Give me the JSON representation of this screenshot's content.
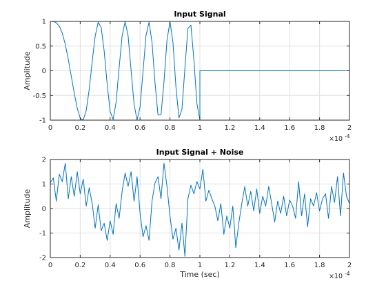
{
  "chart_data": [
    {
      "type": "line",
      "title": "Input Signal",
      "xlabel": "",
      "ylabel": "Amplitude",
      "xlim": [
        0,
        0.0002
      ],
      "ylim": [
        -1,
        1
      ],
      "xticks": [
        "0",
        "0.2",
        "0.4",
        "0.6",
        "0.8",
        "1",
        "1.2",
        "1.4",
        "1.6",
        "1.8",
        "2"
      ],
      "yticks": [
        "1",
        "0.5",
        "0",
        "-0.5",
        "-1"
      ],
      "x_exponent": "×10^-4",
      "x_exponent_base": "×10",
      "x_exponent_power": "-4",
      "grid": true,
      "series": [
        {
          "color": "#0072bd",
          "x": [
            0.0,
            2e-06,
            4e-06,
            6e-06,
            8e-06,
            1e-05,
            1.2e-05,
            1.4e-05,
            1.6e-05,
            1.8e-05,
            2e-05,
            2.2e-05,
            2.4e-05,
            2.6e-05,
            2.8e-05,
            3e-05,
            3.2e-05,
            3.4e-05,
            3.6e-05,
            3.8e-05,
            4e-05,
            4.2e-05,
            4.4e-05,
            4.6e-05,
            4.8e-05,
            5e-05,
            5.2e-05,
            5.4e-05,
            5.6e-05,
            5.8e-05,
            6e-05,
            6.2e-05,
            6.4e-05,
            6.6e-05,
            6.8e-05,
            7e-05,
            7.2e-05,
            7.4e-05,
            7.6e-05,
            7.8e-05,
            8e-05,
            8.2e-05,
            8.4e-05,
            8.6e-05,
            8.8e-05,
            9e-05,
            9.2e-05,
            9.4e-05,
            9.6e-05,
            9.8e-05,
            0.0001,
            0.0001,
            0.00015,
            0.0002
          ],
          "y": [
            1.0,
            0.998,
            0.975,
            0.905,
            0.762,
            0.535,
            0.235,
            -0.107,
            -0.453,
            -0.759,
            -0.962,
            -0.998,
            -0.806,
            -0.378,
            0.187,
            0.702,
            0.984,
            0.881,
            0.401,
            -0.267,
            -0.824,
            -0.987,
            -0.632,
            0.061,
            0.707,
            0.993,
            0.71,
            0.009,
            -0.679,
            -0.999,
            -0.729,
            -0.006,
            0.717,
            0.985,
            0.572,
            -0.243,
            -0.893,
            -0.888,
            -0.221,
            0.618,
            0.997,
            0.572,
            -0.335,
            -0.956,
            -0.781,
            0.061,
            0.858,
            0.926,
            0.219,
            -0.664,
            -0.995,
            0.0,
            0.0,
            0.0
          ]
        }
      ]
    },
    {
      "type": "line",
      "title": "Input Signal + Noise",
      "xlabel": "Time (sec)",
      "ylabel": "Amplitude",
      "xlim": [
        0,
        0.0002
      ],
      "ylim": [
        -2,
        2
      ],
      "xticks": [
        "0",
        "0.2",
        "0.4",
        "0.6",
        "0.8",
        "1",
        "1.2",
        "1.4",
        "1.6",
        "1.8",
        "2"
      ],
      "yticks": [
        "2",
        "1",
        "0",
        "-1",
        "-2"
      ],
      "x_exponent": "×10^-4",
      "x_exponent_base": "×10",
      "x_exponent_power": "-4",
      "grid": true,
      "series": [
        {
          "color": "#0072bd",
          "x": [
            0.0,
            2e-06,
            4e-06,
            6e-06,
            8e-06,
            1e-05,
            1.2e-05,
            1.4e-05,
            1.6e-05,
            1.8e-05,
            2e-05,
            2.2e-05,
            2.4e-05,
            2.6e-05,
            2.8e-05,
            3e-05,
            3.2e-05,
            3.4e-05,
            3.6e-05,
            3.8e-05,
            4e-05,
            4.2e-05,
            4.4e-05,
            4.6e-05,
            4.8e-05,
            5e-05,
            5.2e-05,
            5.4e-05,
            5.6e-05,
            5.8e-05,
            6e-05,
            6.2e-05,
            6.4e-05,
            6.6e-05,
            6.8e-05,
            7e-05,
            7.2e-05,
            7.4e-05,
            7.6e-05,
            7.8e-05,
            8e-05,
            8.2e-05,
            8.4e-05,
            8.6e-05,
            8.8e-05,
            9e-05,
            9.2e-05,
            9.4e-05,
            9.6e-05,
            9.8e-05,
            0.0001,
            0.000102,
            0.000104,
            0.000106,
            0.000108,
            0.00011,
            0.000112,
            0.000114,
            0.000116,
            0.000118,
            0.00012,
            0.000122,
            0.000124,
            0.000126,
            0.000128,
            0.00013,
            0.000132,
            0.000134,
            0.000136,
            0.000138,
            0.00014,
            0.000142,
            0.000144,
            0.000146,
            0.000148,
            0.00015,
            0.000152,
            0.000154,
            0.000156,
            0.000158,
            0.00016,
            0.000162,
            0.000164,
            0.000166,
            0.000168,
            0.00017,
            0.000172,
            0.000174,
            0.000176,
            0.000178,
            0.00018,
            0.000182,
            0.000184,
            0.000186,
            0.000188,
            0.00019,
            0.000192,
            0.000194,
            0.000196,
            0.000198,
            0.0002
          ],
          "y": [
            1.05,
            1.25,
            0.3,
            1.4,
            1.1,
            1.85,
            0.4,
            1.3,
            0.5,
            1.5,
            0.6,
            1.2,
            0.1,
            0.85,
            0.2,
            -0.8,
            0.15,
            -0.9,
            -0.6,
            -1.3,
            -0.5,
            -1.05,
            0.2,
            -0.4,
            0.7,
            1.45,
            0.9,
            1.5,
            0.3,
            1.3,
            -0.2,
            -1.15,
            -0.7,
            -1.3,
            0.3,
            1.05,
            1.3,
            0.4,
            1.85,
            0.9,
            -0.3,
            -1.25,
            -0.8,
            -1.7,
            -0.6,
            -1.95,
            0.4,
            0.95,
            0.6,
            1.1,
            0.8,
            1.6,
            0.3,
            0.75,
            0.4,
            0.1,
            -0.5,
            0.2,
            -1.05,
            -0.3,
            -0.8,
            0.1,
            -1.6,
            -0.6,
            0.2,
            0.9,
            0.1,
            0.7,
            -0.1,
            0.8,
            -0.2,
            0.5,
            0.1,
            0.9,
            0.2,
            -0.55,
            0.3,
            -0.2,
            0.5,
            -0.3,
            0.35,
            0.1,
            -0.4,
            1.1,
            -0.3,
            0.6,
            -0.75,
            0.4,
            0.1,
            0.65,
            -0.1,
            0.4,
            0.6,
            -0.4,
            0.9,
            0.25,
            1.3,
            -0.3,
            1.45,
            0.5,
            0.2
          ]
        }
      ]
    }
  ]
}
